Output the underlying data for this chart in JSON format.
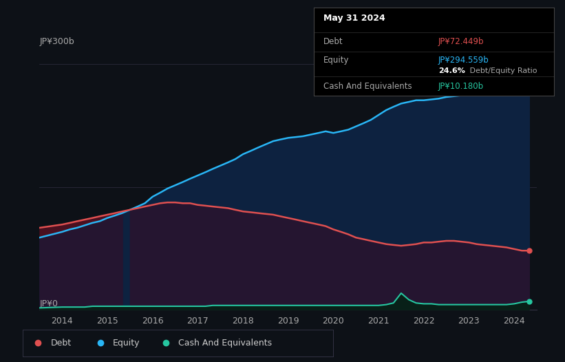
{
  "background_color": "#0d1117",
  "tooltip": {
    "date": "May 31 2024",
    "debt_label": "Debt",
    "debt_value": "JP¥72.449b",
    "equity_label": "Equity",
    "equity_value": "JP¥294.559b",
    "ratio_bold": "24.6%",
    "ratio_rest": " Debt/Equity Ratio",
    "cash_label": "Cash And Equivalents",
    "cash_value": "JP¥10.180b"
  },
  "ylabel_top": "JP¥300b",
  "ylabel_bottom": "JP¥0",
  "x_ticks": [
    "2014",
    "2015",
    "2016",
    "2017",
    "2018",
    "2019",
    "2020",
    "2021",
    "2022",
    "2023",
    "2024"
  ],
  "debt_color": "#e05050",
  "equity_color": "#29b6f6",
  "cash_color": "#26c6a0",
  "years": [
    2013.5,
    2014.0,
    2014.17,
    2014.33,
    2014.5,
    2014.67,
    2014.83,
    2015.0,
    2015.17,
    2015.33,
    2015.5,
    2015.67,
    2015.83,
    2016.0,
    2016.17,
    2016.33,
    2016.5,
    2016.67,
    2016.83,
    2017.0,
    2017.17,
    2017.33,
    2017.5,
    2017.67,
    2017.83,
    2018.0,
    2018.17,
    2018.33,
    2018.5,
    2018.67,
    2018.83,
    2019.0,
    2019.17,
    2019.33,
    2019.5,
    2019.67,
    2019.83,
    2020.0,
    2020.17,
    2020.33,
    2020.5,
    2020.67,
    2020.83,
    2021.0,
    2021.17,
    2021.33,
    2021.5,
    2021.67,
    2021.83,
    2022.0,
    2022.17,
    2022.33,
    2022.5,
    2022.67,
    2022.83,
    2023.0,
    2023.17,
    2023.33,
    2023.5,
    2023.67,
    2023.83,
    2024.0,
    2024.17,
    2024.33
  ],
  "equity": [
    88,
    95,
    98,
    100,
    103,
    106,
    108,
    112,
    115,
    118,
    122,
    126,
    130,
    138,
    143,
    148,
    152,
    156,
    160,
    164,
    168,
    172,
    176,
    180,
    184,
    190,
    194,
    198,
    202,
    206,
    208,
    210,
    211,
    212,
    214,
    216,
    218,
    216,
    218,
    220,
    224,
    228,
    232,
    238,
    244,
    248,
    252,
    254,
    256,
    256,
    257,
    258,
    260,
    261,
    262,
    263,
    264,
    266,
    268,
    270,
    274,
    280,
    288,
    295
  ],
  "debt": [
    100,
    104,
    106,
    108,
    110,
    112,
    114,
    116,
    118,
    120,
    122,
    124,
    126,
    128,
    130,
    131,
    131,
    130,
    130,
    128,
    127,
    126,
    125,
    124,
    122,
    120,
    119,
    118,
    117,
    116,
    114,
    112,
    110,
    108,
    106,
    104,
    102,
    98,
    95,
    92,
    88,
    86,
    84,
    82,
    80,
    79,
    78,
    79,
    80,
    82,
    82,
    83,
    84,
    84,
    83,
    82,
    80,
    79,
    78,
    77,
    76,
    74,
    72,
    72
  ],
  "cash": [
    2,
    3,
    3,
    3,
    3,
    4,
    4,
    4,
    4,
    4,
    4,
    4,
    4,
    4,
    4,
    4,
    4,
    4,
    4,
    4,
    4,
    5,
    5,
    5,
    5,
    5,
    5,
    5,
    5,
    5,
    5,
    5,
    5,
    5,
    5,
    5,
    5,
    5,
    5,
    5,
    5,
    5,
    5,
    5,
    6,
    8,
    20,
    12,
    8,
    7,
    7,
    6,
    6,
    6,
    6,
    6,
    6,
    6,
    6,
    6,
    6,
    7,
    9,
    10
  ],
  "ylim": [
    0,
    310
  ],
  "xlim": [
    2013.5,
    2024.5
  ]
}
